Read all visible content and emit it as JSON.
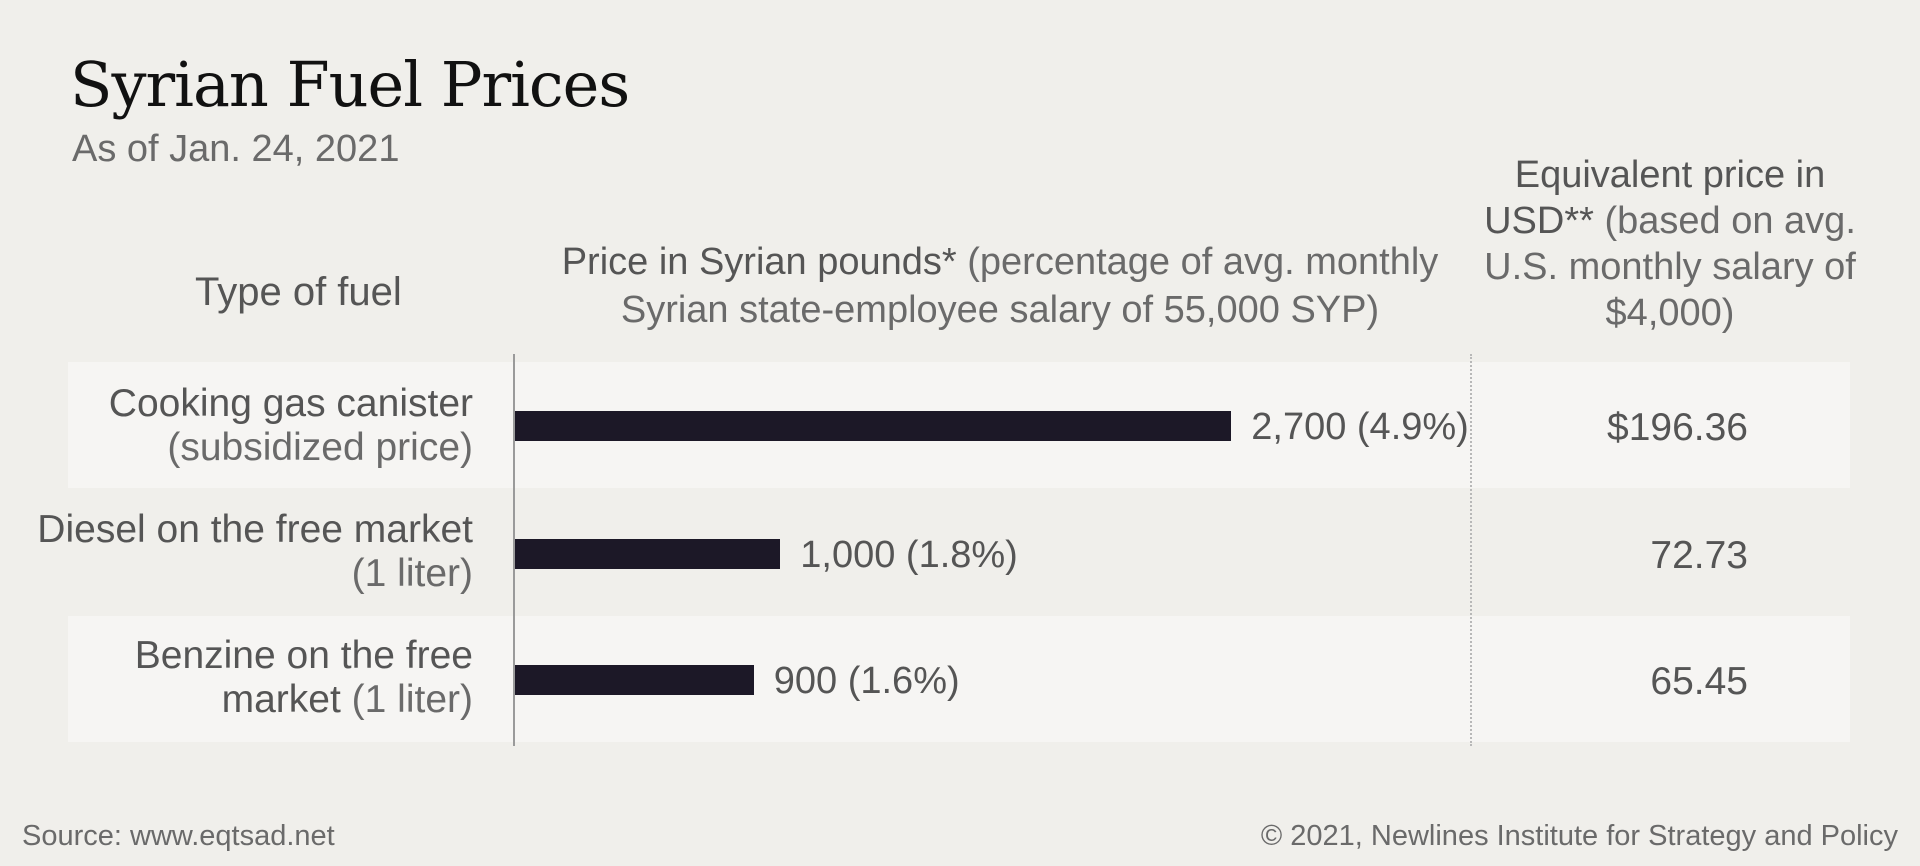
{
  "chart_data": {
    "type": "bar",
    "orientation": "horizontal",
    "title": "Syrian Fuel Prices",
    "subtitle": "As of Jan. 24, 2021",
    "column_headers": {
      "type": "Type of fuel",
      "price_strong": "Price in Syrian pounds*",
      "price_rest": " (percentage of avg. monthly Syrian state-employee salary of 55,000 SYP)",
      "usd_strong": "Equivalent price in USD**",
      "usd_rest": " (based on avg. U.S. monthly salary of $4,000)"
    },
    "categories": [
      {
        "main": "Cooking gas canister",
        "sub": "(subsidized price)"
      },
      {
        "main": "Diesel on the free market",
        "sub": " (1 liter)"
      },
      {
        "main": "Benzine on the free market",
        "sub": " (1 liter)"
      }
    ],
    "values": [
      2700,
      1000,
      900
    ],
    "value_labels": [
      "2,700 (4.9%)",
      "1,000 (1.8%)",
      "900 (1.6%)"
    ],
    "usd_labels": [
      "$196.36",
      "72.73",
      "65.45"
    ],
    "xlim": [
      0,
      3600
    ]
  },
  "footer": {
    "source": "Source: www.eqtsad.net",
    "copyright": "© 2021, Newlines Institute for Strategy and Policy"
  },
  "colors": {
    "bar": "#1c1827",
    "background": "#f0efeb",
    "row_light": "#f6f5f3"
  }
}
